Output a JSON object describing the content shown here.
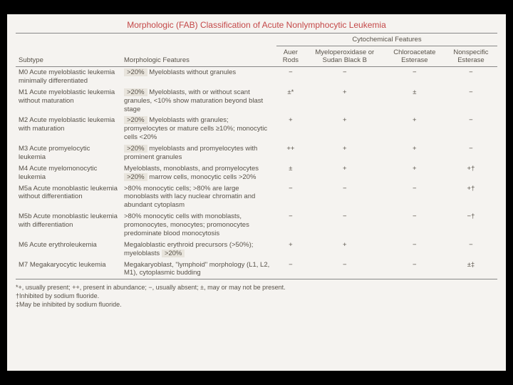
{
  "title": "Morphologic (FAB) Classification of Acute Nonlymphocytic Leukemia",
  "headers": {
    "subtype": "Subtype",
    "morph": "Morphologic Features",
    "cyto_group": "Cytochemical Features",
    "auer": "Auer Rods",
    "mpo": "Myeloperoxidase or Sudan Black B",
    "cae": "Chloroacetate Esterase",
    "nse": "Nonspecific Esterase"
  },
  "rows": [
    {
      "sub": "M0 Acute myeloblastic leukemia minimally differentiated",
      "morph_pre": ">20%",
      "morph_rest": "Myeloblasts without granules",
      "auer": "−",
      "mpo": "−",
      "cae": "−",
      "nse": "−"
    },
    {
      "sub": "M1 Acute myeloblastic leukemia without maturation",
      "morph_pre": ">20%",
      "morph_rest": "Myeloblasts, with or without scant granules, <10% show maturation beyond blast stage",
      "auer": "±*",
      "mpo": "+",
      "cae": "±",
      "nse": "−"
    },
    {
      "sub": "M2 Acute myeloblastic leukemia with maturation",
      "morph_pre": ">20%",
      "morph_rest": "Myeloblasts with granules; promyelocytes or mature cells ≥10%; monocytic cells <20%",
      "auer": "+",
      "mpo": "+",
      "cae": "+",
      "nse": "−"
    },
    {
      "sub": "M3 Acute promyelocytic leukemia",
      "morph_pre": ">20%",
      "morph_rest": "myeloblasts and promyelocytes with prominent granules",
      "auer": "++",
      "mpo": "+",
      "cae": "+",
      "nse": "−"
    },
    {
      "sub": "M4 Acute myelomonocytic leukemia",
      "morph_pre": ">20%",
      "morph_line1": "Myeloblasts, monoblasts, and promyelocytes",
      "morph_rest": "marrow cells, monocytic cells >20%",
      "auer": "±",
      "mpo": "+",
      "cae": "+",
      "nse": "+†"
    },
    {
      "sub": "M5a Acute monoblastic leukemia without differentiation",
      "morph_rest": ">80% monocytic cells; >80% are large monoblasts with lacy nuclear chromatin and abundant cytoplasm",
      "auer": "−",
      "mpo": "−",
      "cae": "−",
      "nse": "+†"
    },
    {
      "sub": "M5b Acute monoblastic leukemia with differentiation",
      "morph_rest": ">80% monocytic cells with monoblasts, promonocytes, monocytes; promonocytes predominate blood monocytosis",
      "auer": "−",
      "mpo": "−",
      "cae": "−",
      "nse": "−†"
    },
    {
      "sub": "M6 Acute erythroleukemia",
      "morph_line1": "Megaloblastic erythroid precursors (>50%);",
      "morph_pre": ">20%",
      "morph_rest_before": "myeloblasts ",
      "auer": "+",
      "mpo": "+",
      "cae": "−",
      "nse": "−"
    },
    {
      "sub": "M7 Megakaryocytic leukemia",
      "morph_rest": "Megakaryoblast, \"lymphoid\" morphology (L1, L2, M1), cytoplasmic budding",
      "auer": "−",
      "mpo": "−",
      "cae": "−",
      "nse": "±‡"
    }
  ],
  "footnotes": {
    "f1": "*+, usually present; ++, present in abundance; −, usually absent; ±, may or may not be present.",
    "f2": "†Inhibited by sodium fluoride.",
    "f3": "‡May be inhibited by sodium fluoride."
  }
}
